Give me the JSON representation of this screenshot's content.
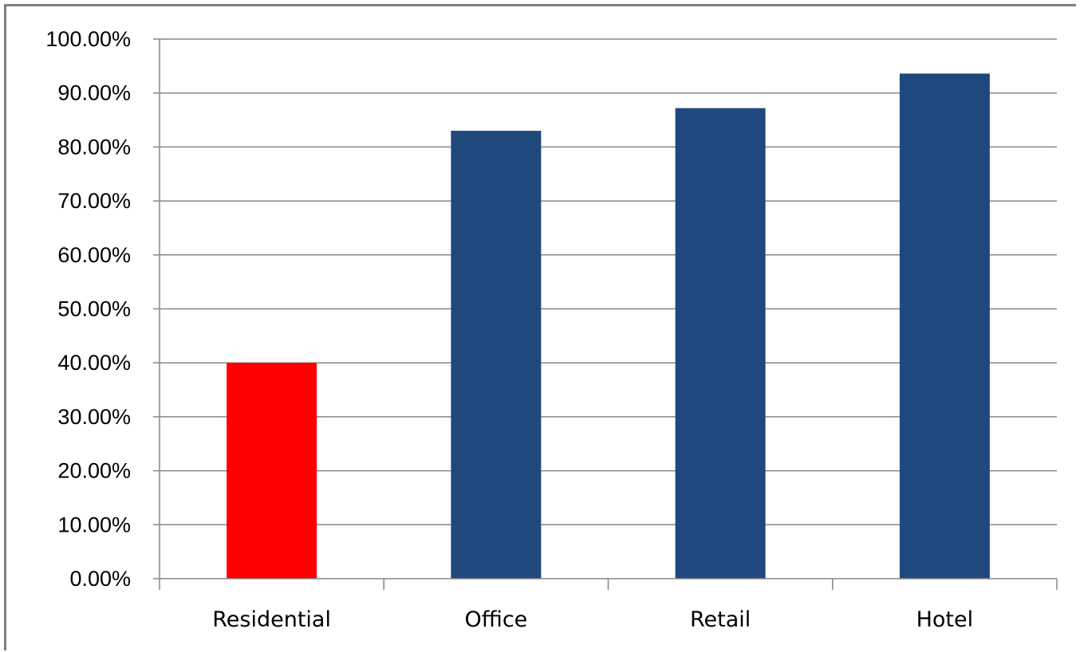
{
  "chart_data": {
    "type": "bar",
    "categories": [
      "Residential",
      "Office",
      "Retail",
      "Hotel"
    ],
    "values": [
      40.0,
      83.0,
      87.2,
      93.6
    ],
    "ylim": [
      0,
      100
    ],
    "y_ticks": [
      "0.00%",
      "10.00%",
      "20.00%",
      "30.00%",
      "40.00%",
      "50.00%",
      "60.00%",
      "70.00%",
      "80.00%",
      "90.00%",
      "100.00%"
    ],
    "grid": true,
    "legend": "none",
    "bar_colors": [
      "#ff0000",
      "#1f497d",
      "#1f497d",
      "#1f497d"
    ],
    "gridline_color": "#868686"
  }
}
